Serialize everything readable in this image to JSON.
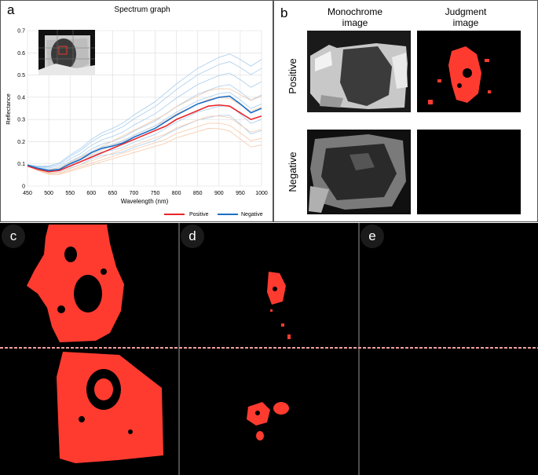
{
  "panel_a": {
    "letter": "a",
    "chart_data": {
      "type": "line",
      "title": "Spectrum graph",
      "xlabel": "Wavelength (nm)",
      "ylabel": "Reflectance",
      "xlim": [
        450,
        1000
      ],
      "ylim": [
        0,
        0.7
      ],
      "x_ticks": [
        "450",
        "500",
        "550",
        "600",
        "650",
        "700",
        "750",
        "800",
        "850",
        "900",
        "950",
        "1000"
      ],
      "y_ticks": [
        "0",
        "0.1",
        "0.2",
        "0.3",
        "0.4",
        "0.5",
        "0.6",
        "0.7"
      ],
      "grid": true,
      "legend_position": "bottom-right",
      "series": [
        {
          "name": "Positive",
          "color": "#e8262b",
          "x": [
            450,
            475,
            500,
            525,
            550,
            575,
            600,
            625,
            650,
            675,
            700,
            725,
            750,
            775,
            800,
            825,
            850,
            875,
            900,
            925,
            950,
            975,
            1000
          ],
          "y": [
            0.09,
            0.075,
            0.065,
            0.07,
            0.09,
            0.11,
            0.13,
            0.15,
            0.17,
            0.19,
            0.21,
            0.23,
            0.25,
            0.27,
            0.3,
            0.32,
            0.34,
            0.36,
            0.365,
            0.36,
            0.33,
            0.3,
            0.315
          ]
        },
        {
          "name": "Negative",
          "color": "#1f6fc5",
          "x": [
            450,
            475,
            500,
            525,
            550,
            575,
            600,
            625,
            650,
            675,
            700,
            725,
            750,
            775,
            800,
            825,
            850,
            875,
            900,
            925,
            950,
            975,
            1000
          ],
          "y": [
            0.095,
            0.08,
            0.07,
            0.075,
            0.1,
            0.12,
            0.15,
            0.17,
            0.18,
            0.195,
            0.22,
            0.24,
            0.26,
            0.29,
            0.32,
            0.345,
            0.37,
            0.385,
            0.4,
            0.405,
            0.37,
            0.33,
            0.35
          ]
        }
      ]
    }
  },
  "panel_b": {
    "letter": "b",
    "col_monochrome": "Monochrome\nimage",
    "col_judgment": "Judgment\nimage",
    "row_positive": "Positive",
    "row_negative": "Negative"
  },
  "panel_c": {
    "letter": "c"
  },
  "panel_d": {
    "letter": "d"
  },
  "panel_e": {
    "letter": "e"
  },
  "colors": {
    "positive_red": "#e8262b",
    "negative_blue": "#1f6fc5",
    "judgment_red": "#ff3b30",
    "divider": "#f4a0a0"
  }
}
